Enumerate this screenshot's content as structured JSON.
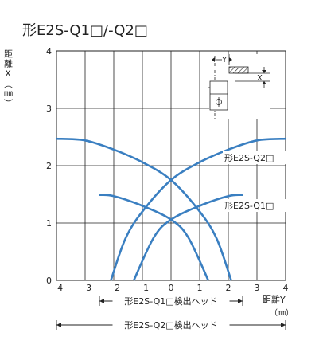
{
  "chart_data": {
    "type": "line",
    "title": "形E2S-Q1□/-Q2□",
    "ylabel": "距離X（㎜）",
    "xlabel": "距離Y",
    "xlabel_unit": "（㎜）",
    "xlim": [
      -4,
      4
    ],
    "ylim": [
      0,
      4
    ],
    "x_ticks": [
      "−4",
      "−3",
      "−2",
      "−1",
      "0",
      "1",
      "2",
      "3",
      "4"
    ],
    "y_ticks": [
      "0",
      "1",
      "2",
      "3",
      "4"
    ],
    "grid": true,
    "series": [
      {
        "name": "形E2S-Q2□",
        "color": "#3a7fc1",
        "left_curve": [
          [
            -4.0,
            2.47
          ],
          [
            -3.0,
            2.44
          ],
          [
            -2.0,
            2.28
          ],
          [
            -1.0,
            2.06
          ],
          [
            0.0,
            1.75
          ],
          [
            1.0,
            1.2
          ],
          [
            1.6,
            0.72
          ],
          [
            2.1,
            0.0
          ]
        ],
        "right_curve": [
          [
            4.0,
            2.47
          ],
          [
            3.0,
            2.44
          ],
          [
            2.0,
            2.28
          ],
          [
            1.0,
            2.06
          ],
          [
            0.0,
            1.75
          ],
          [
            -1.0,
            1.2
          ],
          [
            -1.6,
            0.72
          ],
          [
            -2.1,
            0.0
          ]
        ]
      },
      {
        "name": "形E2S-Q1□",
        "color": "#3a7fc1",
        "left_curve": [
          [
            -2.5,
            1.49
          ],
          [
            -2.0,
            1.47
          ],
          [
            -1.0,
            1.3
          ],
          [
            0.0,
            1.06
          ],
          [
            0.6,
            0.75
          ],
          [
            1.3,
            0.0
          ]
        ],
        "right_curve": [
          [
            2.5,
            1.49
          ],
          [
            2.0,
            1.47
          ],
          [
            1.0,
            1.3
          ],
          [
            0.0,
            1.06
          ],
          [
            -0.6,
            0.75
          ],
          [
            -1.3,
            0.0
          ]
        ]
      }
    ],
    "labels": {
      "q2": "形E2S-Q2□",
      "q1": "形E2S-Q1□"
    },
    "ranges": [
      {
        "name": "q1-head-range",
        "from": -2.5,
        "to": 2.5,
        "label": "形E2S-Q1□検出ヘッド"
      },
      {
        "name": "q2-head-range",
        "from": -4,
        "to": 4,
        "label": "形E2S-Q2□検出ヘッド"
      }
    ],
    "inset": {
      "y_label": "Y",
      "x_label": "X"
    }
  }
}
